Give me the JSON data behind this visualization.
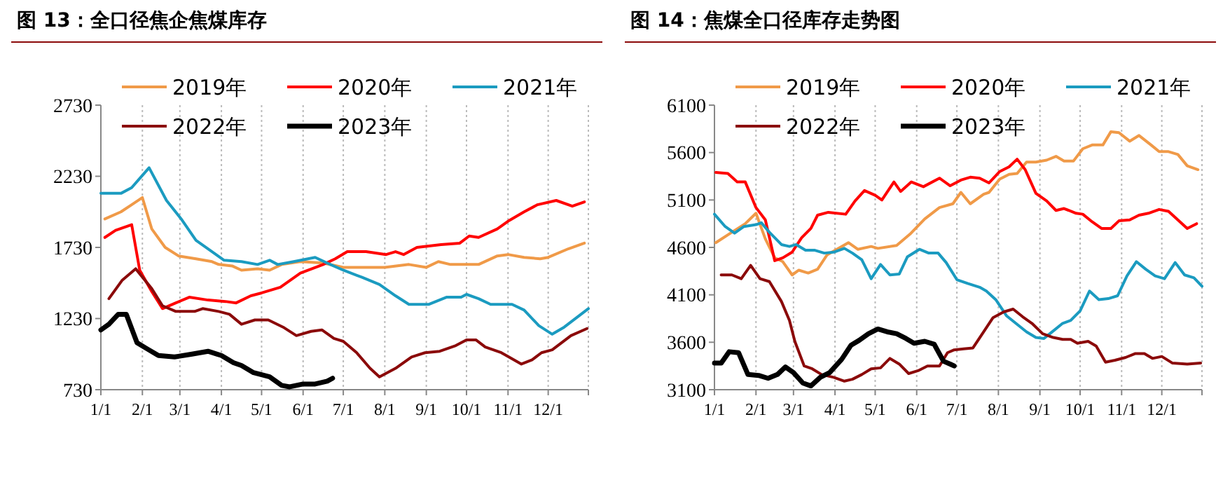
{
  "chart_data": [
    {
      "type": "line",
      "title": "图 13：全口径焦企焦煤库存",
      "xlim": [
        "--01-01",
        "--12-31"
      ],
      "xticks": [
        {
          "value": "--01-01",
          "label": "1/1"
        },
        {
          "value": "--02-01",
          "label": "2/1"
        },
        {
          "value": "--03-01",
          "label": "3/1"
        },
        {
          "value": "--04-01",
          "label": "4/1"
        },
        {
          "value": "--05-01",
          "label": "5/1"
        },
        {
          "value": "--06-01",
          "label": "6/1"
        },
        {
          "value": "--07-01",
          "label": "7/1"
        },
        {
          "value": "--08-01",
          "label": "8/1"
        },
        {
          "value": "--09-01",
          "label": "9/1"
        },
        {
          "value": "--10-01",
          "label": "10/1"
        },
        {
          "value": "--11-01",
          "label": "11/1"
        },
        {
          "value": "--12-01",
          "label": "12/1"
        },
        {
          "value": "--12-31",
          "label": null
        }
      ],
      "ylim": [
        730,
        2730
      ],
      "yticks": [
        730,
        1230,
        1730,
        2230,
        2730
      ],
      "grid": "x",
      "legend": "top",
      "marker": "none",
      "line_style": "solid",
      "series": [
        {
          "name": "2019年",
          "color": "#f09a48",
          "x": [
            "--01-04",
            "--01-16",
            "--01-24",
            "--02-01",
            "--02-08",
            "--02-18",
            "--02-28",
            "--03-13",
            "--03-25",
            "--03-30",
            "--04-09",
            "--04-16",
            "--04-28",
            "--05-07",
            "--05-16",
            "--05-30",
            "--06-16",
            "--07-01",
            "--07-15",
            "--08-01",
            "--08-19",
            "--09-01",
            "--09-10",
            "--09-19",
            "--10-10",
            "--10-24",
            "--11-01",
            "--11-13",
            "--11-25",
            "--12-01",
            "--12-16",
            "--12-28"
          ],
          "values": [
            1930,
            1980,
            2030,
            2080,
            1860,
            1730,
            1670,
            1650,
            1630,
            1610,
            1600,
            1570,
            1580,
            1570,
            1610,
            1630,
            1620,
            1590,
            1590,
            1590,
            1610,
            1590,
            1630,
            1610,
            1610,
            1670,
            1680,
            1660,
            1650,
            1660,
            1720,
            1760
          ]
        },
        {
          "name": "2020年",
          "color": "#ff0000",
          "x": [
            "--01-04",
            "--01-12",
            "--01-24",
            "--01-30",
            "--02-08",
            "--02-16",
            "--02-26",
            "--03-08",
            "--03-22",
            "--04-04",
            "--04-12",
            "--04-23",
            "--05-01",
            "--05-15",
            "--05-30",
            "--06-16",
            "--06-25",
            "--07-04",
            "--07-18",
            "--08-02",
            "--08-09",
            "--08-15",
            "--08-25",
            "--09-12",
            "--09-26",
            "--10-03",
            "--10-10",
            "--10-24",
            "--11-02",
            "--11-13",
            "--11-23",
            "--12-07",
            "--12-19",
            "--12-28"
          ],
          "values": [
            1800,
            1850,
            1890,
            1570,
            1420,
            1300,
            1340,
            1380,
            1360,
            1350,
            1340,
            1390,
            1410,
            1450,
            1550,
            1610,
            1650,
            1700,
            1700,
            1680,
            1700,
            1680,
            1730,
            1750,
            1760,
            1810,
            1800,
            1860,
            1920,
            1980,
            2030,
            2060,
            2020,
            2050
          ]
        },
        {
          "name": "2021年",
          "color": "#1b9bc0",
          "x": [
            "--01-01",
            "--01-07",
            "--01-16",
            "--01-24",
            "--02-06",
            "--02-19",
            "--03-02",
            "--03-13",
            "--03-25",
            "--04-03",
            "--04-16",
            "--04-28",
            "--05-07",
            "--05-13",
            "--05-25",
            "--06-10",
            "--06-19",
            "--07-01",
            "--07-15",
            "--07-28",
            "--08-09",
            "--08-19",
            "--09-03",
            "--09-16",
            "--09-27",
            "--10-01",
            "--10-10",
            "--10-19",
            "--11-04",
            "--11-13",
            "--11-24",
            "--12-04",
            "--12-13",
            "--12-31"
          ],
          "values": [
            2110,
            2110,
            2110,
            2150,
            2290,
            2060,
            1930,
            1780,
            1700,
            1640,
            1630,
            1610,
            1640,
            1610,
            1630,
            1660,
            1620,
            1570,
            1520,
            1470,
            1390,
            1330,
            1330,
            1380,
            1380,
            1400,
            1370,
            1330,
            1330,
            1290,
            1180,
            1120,
            1170,
            1300
          ]
        },
        {
          "name": "2022年",
          "color": "#8b0a0a",
          "x": [
            "--01-07",
            "--01-17",
            "--01-27",
            "--02-08",
            "--02-16",
            "--02-26",
            "--03-12",
            "--03-18",
            "--03-30",
            "--04-07",
            "--04-16",
            "--04-26",
            "--05-06",
            "--05-17",
            "--05-27",
            "--06-07",
            "--06-15",
            "--06-24",
            "--07-01",
            "--07-11",
            "--07-21",
            "--07-28",
            "--08-09",
            "--08-21",
            "--08-31",
            "--09-11",
            "--09-23",
            "--10-01",
            "--10-08",
            "--10-15",
            "--10-27",
            "--11-11",
            "--11-19",
            "--11-26",
            "--12-04",
            "--12-18",
            "--12-30"
          ],
          "values": [
            1370,
            1500,
            1580,
            1440,
            1320,
            1280,
            1280,
            1300,
            1280,
            1260,
            1190,
            1220,
            1220,
            1170,
            1110,
            1140,
            1150,
            1090,
            1070,
            990,
            880,
            820,
            880,
            960,
            990,
            1000,
            1040,
            1080,
            1080,
            1030,
            990,
            910,
            940,
            990,
            1010,
            1110,
            1160
          ]
        },
        {
          "name": "2023年",
          "color": "#000000",
          "x": [
            "--01-01",
            "--01-07",
            "--01-14",
            "--01-20",
            "--01-28",
            "--02-04",
            "--02-13",
            "--02-25",
            "--03-10",
            "--03-22",
            "--04-01",
            "--04-10",
            "--04-16",
            "--04-25",
            "--05-07",
            "--05-16",
            "--05-22",
            "--06-01",
            "--06-10",
            "--06-19",
            "--06-23"
          ],
          "values": [
            1150,
            1190,
            1260,
            1260,
            1060,
            1020,
            970,
            960,
            980,
            1000,
            970,
            920,
            900,
            850,
            820,
            760,
            750,
            770,
            770,
            790,
            810
          ]
        }
      ]
    },
    {
      "type": "line",
      "title": "图 14：焦煤全口径库存走势图",
      "xlim": [
        "--01-01",
        "--12-31"
      ],
      "xticks": [
        {
          "value": "--01-01",
          "label": "1/1"
        },
        {
          "value": "--02-01",
          "label": "2/1"
        },
        {
          "value": "--03-01",
          "label": "3/1"
        },
        {
          "value": "--04-01",
          "label": "4/1"
        },
        {
          "value": "--05-01",
          "label": "5/1"
        },
        {
          "value": "--06-01",
          "label": "6/1"
        },
        {
          "value": "--07-01",
          "label": "7/1"
        },
        {
          "value": "--08-01",
          "label": "8/1"
        },
        {
          "value": "--09-01",
          "label": "9/1"
        },
        {
          "value": "--10-01",
          "label": "10/1"
        },
        {
          "value": "--11-01",
          "label": "11/1"
        },
        {
          "value": "--12-01",
          "label": "12/1"
        },
        {
          "value": "--12-31",
          "label": null
        }
      ],
      "ylim": [
        3100,
        6100
      ],
      "yticks": [
        3100,
        3600,
        4100,
        4600,
        5100,
        5600,
        6100
      ],
      "grid": "x",
      "legend": "top",
      "marker": "none",
      "line_style": "solid",
      "series": [
        {
          "name": "2019年",
          "color": "#f09a48",
          "x": [
            "--01-02",
            "--01-14",
            "--01-24",
            "--02-01",
            "--02-08",
            "--02-15",
            "--02-21",
            "--02-28",
            "--03-05",
            "--03-12",
            "--03-19",
            "--03-26",
            "--04-06",
            "--04-11",
            "--04-18",
            "--04-28",
            "--05-03",
            "--05-17",
            "--05-27",
            "--06-07",
            "--06-18",
            "--06-28",
            "--07-04",
            "--07-11",
            "--07-21",
            "--07-25",
            "--08-02",
            "--08-09",
            "--08-15",
            "--08-22",
            "--08-29",
            "--09-06",
            "--09-13",
            "--09-19",
            "--09-26",
            "--10-03",
            "--10-10",
            "--10-18",
            "--10-24",
            "--10-30",
            "--11-07",
            "--11-14",
            "--11-23",
            "--11-29",
            "--12-06",
            "--12-13",
            "--12-20",
            "--12-28"
          ],
          "values": [
            4650,
            4760,
            4850,
            4960,
            4690,
            4490,
            4450,
            4310,
            4360,
            4330,
            4370,
            4520,
            4610,
            4650,
            4580,
            4610,
            4590,
            4620,
            4740,
            4900,
            5020,
            5060,
            5180,
            5060,
            5160,
            5180,
            5320,
            5370,
            5380,
            5500,
            5500,
            5520,
            5560,
            5510,
            5510,
            5640,
            5680,
            5680,
            5820,
            5810,
            5720,
            5780,
            5680,
            5610,
            5610,
            5580,
            5460,
            5420
          ]
        },
        {
          "name": "2020年",
          "color": "#ff0000",
          "x": [
            "--01-02",
            "--01-11",
            "--01-18",
            "--01-24",
            "--02-01",
            "--02-08",
            "--02-15",
            "--02-21",
            "--02-28",
            "--03-07",
            "--03-14",
            "--03-19",
            "--03-27",
            "--04-09",
            "--04-16",
            "--04-23",
            "--05-01",
            "--05-06",
            "--05-15",
            "--05-20",
            "--05-28",
            "--06-06",
            "--06-18",
            "--06-26",
            "--07-04",
            "--07-11",
            "--07-18",
            "--07-25",
            "--08-02",
            "--08-09",
            "--08-15",
            "--08-21",
            "--08-29",
            "--09-06",
            "--09-13",
            "--09-19",
            "--09-28",
            "--10-03",
            "--10-10",
            "--10-17",
            "--10-24",
            "--10-30",
            "--11-07",
            "--11-14",
            "--11-21",
            "--11-29",
            "--12-06",
            "--12-13",
            "--12-20",
            "--12-27"
          ],
          "values": [
            5390,
            5380,
            5290,
            5290,
            5020,
            4890,
            4460,
            4490,
            4550,
            4700,
            4800,
            4940,
            4970,
            4950,
            5090,
            5200,
            5150,
            5100,
            5290,
            5190,
            5290,
            5240,
            5330,
            5250,
            5310,
            5340,
            5330,
            5280,
            5400,
            5450,
            5530,
            5420,
            5170,
            5090,
            4990,
            5010,
            4960,
            4950,
            4870,
            4800,
            4800,
            4880,
            4890,
            4940,
            4960,
            5000,
            4980,
            4890,
            4800,
            4850
          ]
        },
        {
          "name": "2021年",
          "color": "#1b9bc0",
          "x": [
            "--01-01",
            "--01-09",
            "--01-16",
            "--01-23",
            "--02-01",
            "--02-05",
            "--02-11",
            "--02-20",
            "--02-26",
            "--03-03",
            "--03-10",
            "--03-17",
            "--03-24",
            "--03-31",
            "--04-08",
            "--04-14",
            "--04-21",
            "--04-28",
            "--05-05",
            "--05-12",
            "--05-19",
            "--05-25",
            "--06-03",
            "--06-10",
            "--06-17",
            "--06-23",
            "--07-01",
            "--07-09",
            "--07-18",
            "--07-23",
            "--07-30",
            "--08-07",
            "--08-14",
            "--08-22",
            "--08-29",
            "--09-04",
            "--09-11",
            "--09-18",
            "--09-24",
            "--10-01",
            "--10-08",
            "--10-15",
            "--10-22",
            "--10-29",
            "--11-05",
            "--11-12",
            "--11-19",
            "--11-26",
            "--12-03",
            "--12-11",
            "--12-18",
            "--12-25",
            "--12-31"
          ],
          "values": [
            4950,
            4820,
            4750,
            4820,
            4840,
            4860,
            4760,
            4630,
            4610,
            4630,
            4570,
            4570,
            4540,
            4550,
            4590,
            4540,
            4470,
            4270,
            4420,
            4310,
            4320,
            4500,
            4580,
            4540,
            4540,
            4440,
            4260,
            4220,
            4180,
            4140,
            4050,
            3880,
            3800,
            3710,
            3650,
            3640,
            3720,
            3800,
            3830,
            3930,
            4140,
            4050,
            4060,
            4090,
            4300,
            4450,
            4370,
            4300,
            4270,
            4440,
            4310,
            4280,
            4190
          ]
        },
        {
          "name": "2022年",
          "color": "#8b0a0a",
          "x": [
            "--01-06",
            "--01-14",
            "--01-21",
            "--01-28",
            "--02-04",
            "--02-11",
            "--02-20",
            "--02-26",
            "--03-02",
            "--03-09",
            "--03-15",
            "--03-22",
            "--03-31",
            "--04-08",
            "--04-14",
            "--04-21",
            "--04-28",
            "--05-05",
            "--05-12",
            "--05-19",
            "--05-26",
            "--06-02",
            "--06-09",
            "--06-18",
            "--06-24",
            "--06-29",
            "--07-06",
            "--07-13",
            "--07-21",
            "--07-28",
            "--08-05",
            "--08-12",
            "--08-19",
            "--08-26",
            "--09-03",
            "--09-11",
            "--09-18",
            "--09-24",
            "--09-29",
            "--10-07",
            "--10-13",
            "--10-20",
            "--10-27",
            "--11-04",
            "--11-11",
            "--11-18",
            "--11-24",
            "--12-01",
            "--12-09",
            "--12-20",
            "--12-30"
          ],
          "values": [
            4310,
            4310,
            4270,
            4410,
            4270,
            4240,
            4030,
            3830,
            3610,
            3350,
            3320,
            3260,
            3230,
            3190,
            3210,
            3260,
            3320,
            3330,
            3430,
            3370,
            3270,
            3300,
            3350,
            3350,
            3490,
            3520,
            3530,
            3540,
            3710,
            3860,
            3920,
            3950,
            3870,
            3800,
            3690,
            3650,
            3630,
            3630,
            3590,
            3610,
            3560,
            3390,
            3410,
            3440,
            3480,
            3480,
            3430,
            3450,
            3380,
            3370,
            3380
          ]
        },
        {
          "name": "2023年",
          "color": "#000000",
          "x": [
            "--01-01",
            "--01-06",
            "--01-12",
            "--01-19",
            "--01-26",
            "--02-03",
            "--02-10",
            "--02-17",
            "--02-23",
            "--03-01",
            "--03-08",
            "--03-14",
            "--03-21",
            "--03-28",
            "--04-06",
            "--04-13",
            "--04-19",
            "--04-26",
            "--05-03",
            "--05-10",
            "--05-17",
            "--05-24",
            "--05-30",
            "--06-07",
            "--06-14",
            "--06-21",
            "--06-26",
            "--06-29"
          ],
          "values": [
            3380,
            3380,
            3500,
            3490,
            3260,
            3250,
            3220,
            3260,
            3340,
            3280,
            3170,
            3140,
            3230,
            3280,
            3420,
            3570,
            3620,
            3690,
            3740,
            3710,
            3690,
            3640,
            3590,
            3610,
            3580,
            3400,
            3370,
            3350
          ]
        }
      ]
    }
  ]
}
